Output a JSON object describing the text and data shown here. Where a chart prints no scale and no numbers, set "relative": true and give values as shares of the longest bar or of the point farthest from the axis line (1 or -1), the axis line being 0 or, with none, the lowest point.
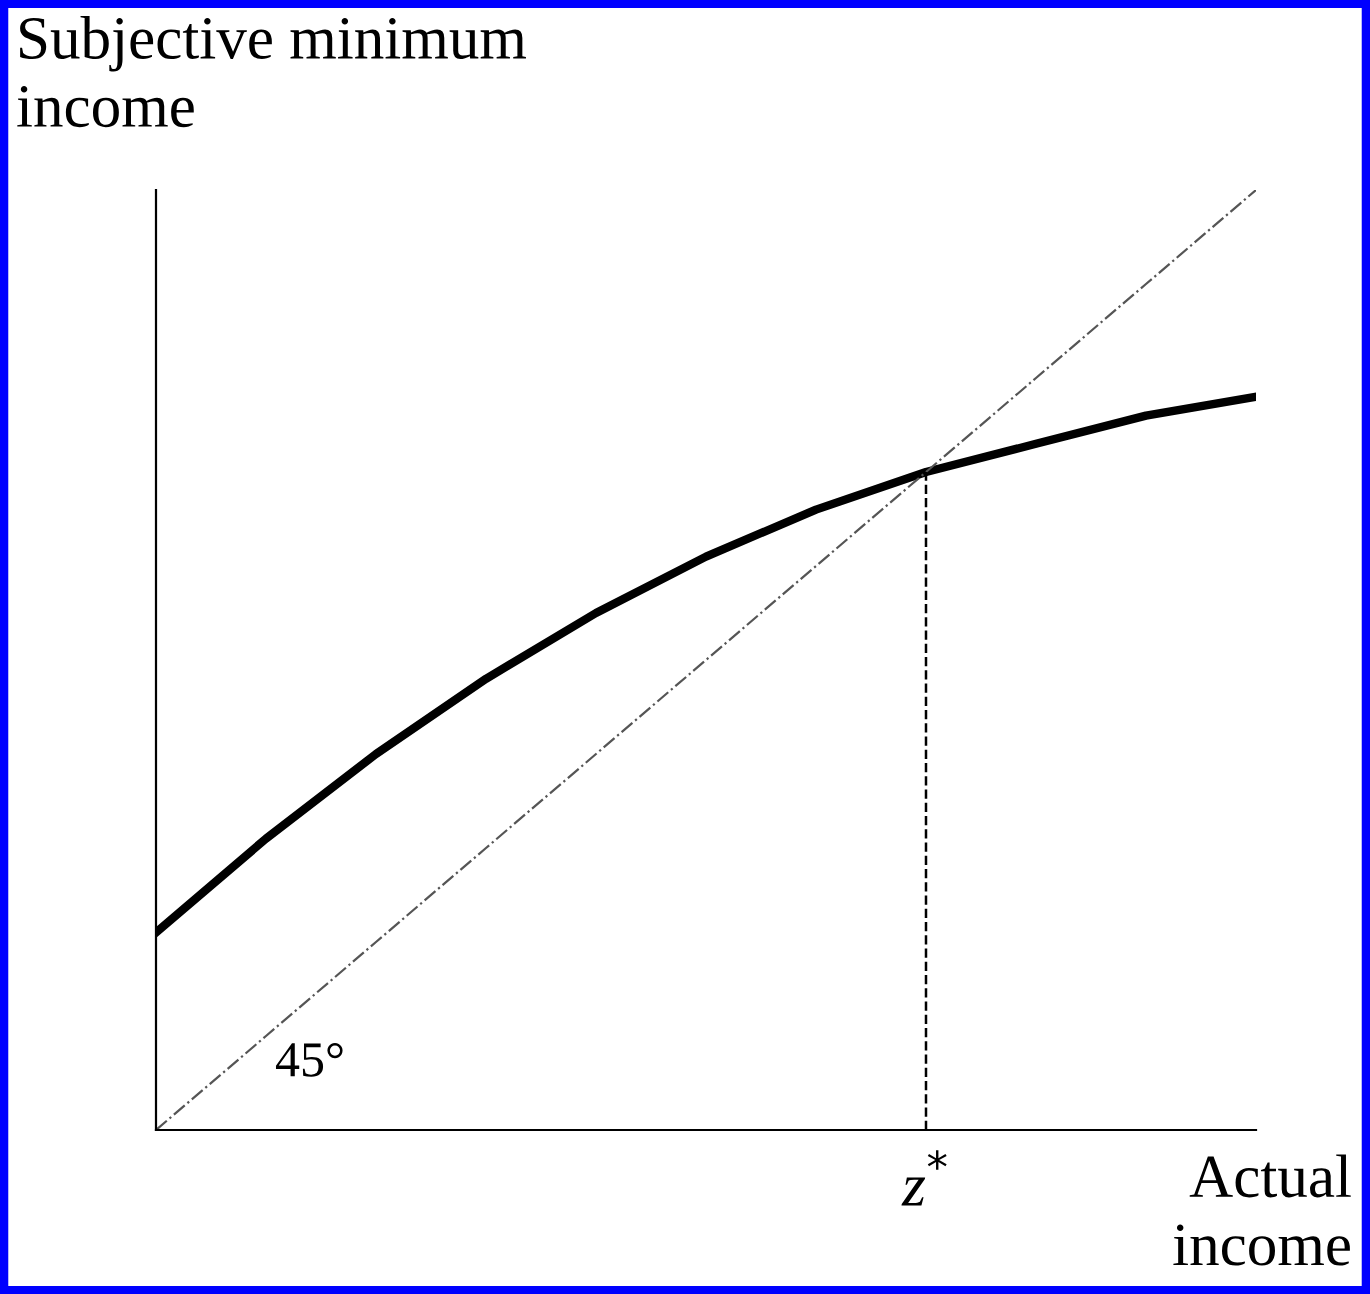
{
  "chart_data": {
    "type": "line",
    "relative": true,
    "xlabel": "Actual\nincome",
    "ylabel": "Subjective minimum\nincome",
    "categories": [
      null,
      null,
      null,
      null,
      null,
      null,
      null,
      null,
      null,
      null,
      null
    ],
    "series": [
      {
        "color": "#000000",
        "line_style": "solid",
        "values": [
          0.21,
          0.31,
          0.4,
          0.48,
          0.55,
          0.61,
          0.66,
          0.7,
          0.73,
          0.76,
          0.78
        ]
      },
      {
        "color": "#555555",
        "line_style": "dashdot",
        "values": [
          0.0,
          0.1,
          0.2,
          0.3,
          0.4,
          0.5,
          0.6,
          0.7,
          0.8,
          0.9,
          1.0
        ]
      }
    ],
    "annotations": [
      "45°",
      "z$^{*}$"
    ],
    "legend": false,
    "marker": "none",
    "tick_labels": false
  }
}
